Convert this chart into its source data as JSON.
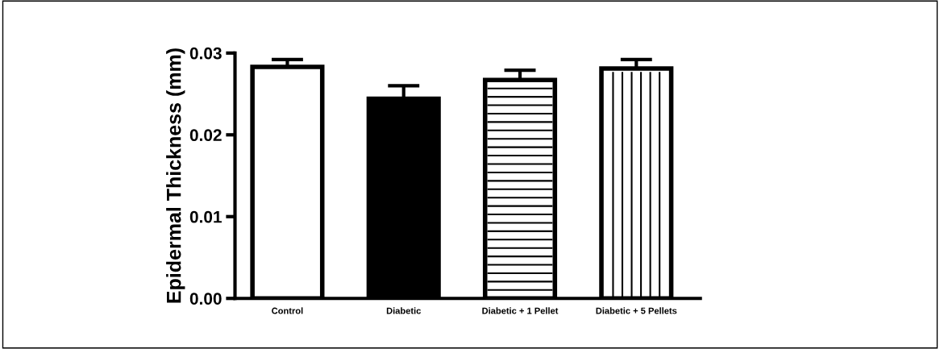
{
  "chart_data": {
    "type": "bar",
    "ylabel": "Epidermal Thickness (mm)",
    "categories": [
      "Control",
      "Diabetic",
      "Diabetic + 1 Pellet",
      "Diabetic + 5 Pellets"
    ],
    "values": [
      0.0283,
      0.0244,
      0.0267,
      0.0281
    ],
    "colors": [
      "#ffffff",
      "#000000",
      "#ffffff",
      "#ffffff"
    ],
    "errors": [
      [
        0.0283,
        0.0292
      ],
      [
        0.0244,
        0.026
      ],
      [
        0.0267,
        0.0279
      ],
      [
        0.0281,
        0.0292
      ]
    ],
    "ylim": [
      0,
      0.03
    ],
    "yticks": [
      {
        "value": 0,
        "label": "0.00"
      },
      {
        "value": 0.01,
        "label": "0.01"
      },
      {
        "value": 0.02,
        "label": "0.02"
      },
      {
        "value": 0.03,
        "label": "0.03"
      }
    ],
    "grid": false,
    "legend": false
  }
}
